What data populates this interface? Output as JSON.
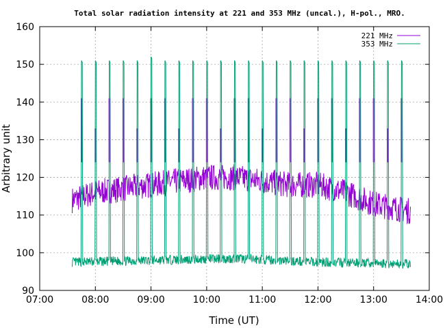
{
  "chart_data": {
    "type": "line",
    "title": "Total solar radiation intensity at 221 and 353 MHz (uncal.), H-pol., MRO.",
    "xlabel": "Time (UT)",
    "ylabel": "Arbitrary unit",
    "xlim": [
      "07:00",
      "14:00"
    ],
    "ylim": [
      90,
      160
    ],
    "x_ticks": [
      "07:00",
      "08:00",
      "09:00",
      "10:00",
      "11:00",
      "12:00",
      "13:00",
      "14:00"
    ],
    "y_ticks": [
      "90",
      "100",
      "110",
      "120",
      "130",
      "140",
      "150",
      "160"
    ],
    "grid": true,
    "legend_position": "top-right",
    "time_range": [
      "07:35",
      "13:40"
    ],
    "spike_times": [
      "07:45",
      "08:00",
      "08:15",
      "08:30",
      "08:45",
      "09:00",
      "09:15",
      "09:30",
      "09:45",
      "10:00",
      "10:15",
      "10:30",
      "10:45",
      "11:00",
      "11:15",
      "11:30",
      "11:45",
      "12:00",
      "12:15",
      "12:30",
      "12:45",
      "13:00",
      "13:15",
      "13:30"
    ],
    "series": [
      {
        "name": "221 MHz",
        "color": "#9400d3",
        "baseline_trend": [
          {
            "time": "07:35",
            "value": 114
          },
          {
            "time": "08:00",
            "value": 116
          },
          {
            "time": "08:30",
            "value": 117
          },
          {
            "time": "09:00",
            "value": 118
          },
          {
            "time": "09:30",
            "value": 119
          },
          {
            "time": "10:00",
            "value": 120
          },
          {
            "time": "10:30",
            "value": 120
          },
          {
            "time": "11:00",
            "value": 119
          },
          {
            "time": "11:30",
            "value": 118
          },
          {
            "time": "12:00",
            "value": 118
          },
          {
            "time": "12:30",
            "value": 116
          },
          {
            "time": "13:00",
            "value": 113
          },
          {
            "time": "13:40",
            "value": 111
          }
        ],
        "spike_high": 141,
        "spike_mid": 133
      },
      {
        "name": "353 MHz",
        "color": "#009e73",
        "baseline_trend": [
          {
            "time": "07:35",
            "value": 97.5
          },
          {
            "time": "09:00",
            "value": 98
          },
          {
            "time": "10:30",
            "value": 98.5
          },
          {
            "time": "12:00",
            "value": 97.5
          },
          {
            "time": "13:40",
            "value": 97
          }
        ],
        "spike_high": 151,
        "spike_max": 152
      }
    ]
  }
}
